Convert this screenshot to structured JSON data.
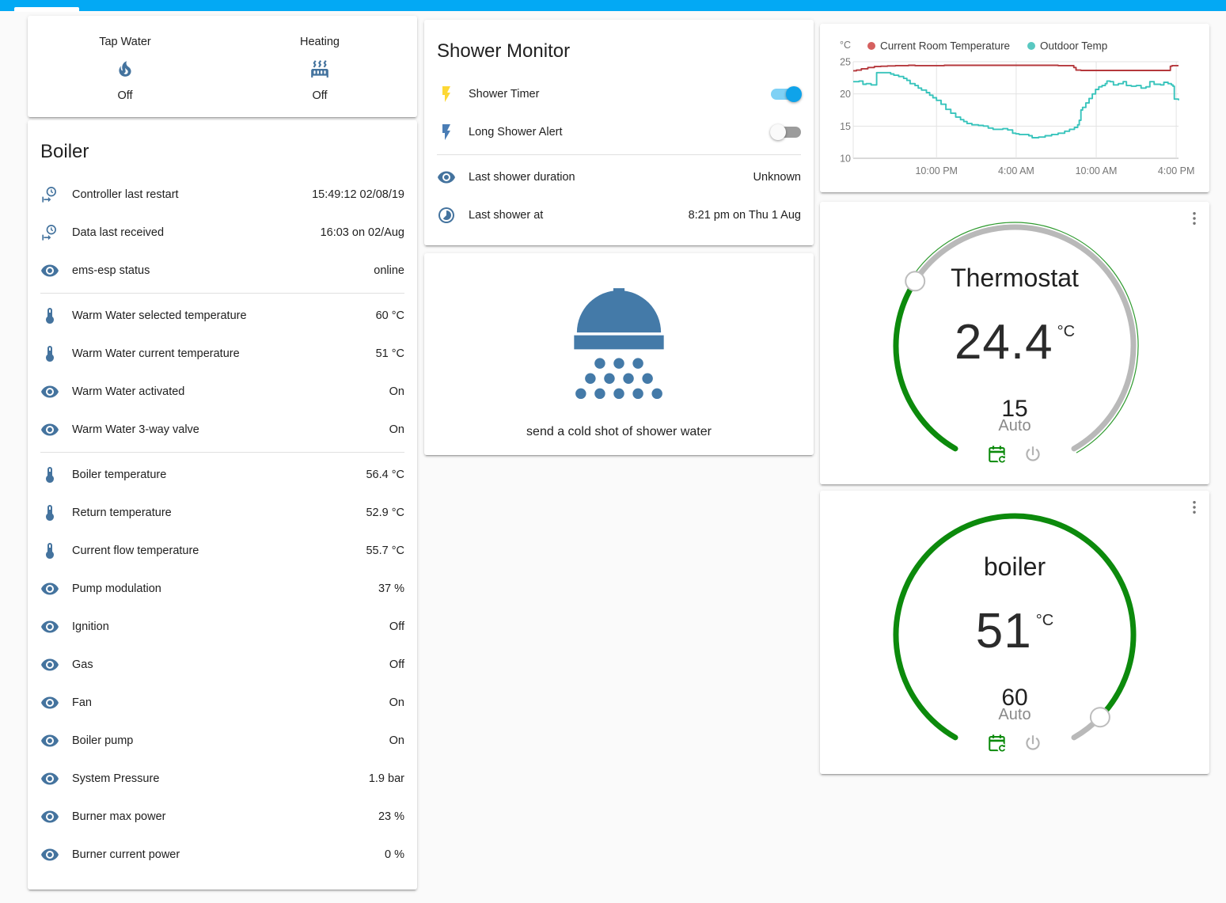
{
  "topbar": {
    "color": "#03a9f4"
  },
  "colors": {
    "icon_blue": "#44739e",
    "accent": "#03a9f4",
    "dial_green": "#0c8a0c",
    "dial_gray": "#b9b9b9",
    "yellow_bolt": "#fdd835",
    "blue_bolt": "#4a7db5",
    "shower_icon_blue": "#447aa8",
    "power_gray": "#b3b3b3",
    "menu_gray": "#757575"
  },
  "status_card": {
    "items": [
      {
        "label": "Tap Water",
        "icon": "fire-icon",
        "state": "Off"
      },
      {
        "label": "Heating",
        "icon": "radiator-icon",
        "state": "Off"
      }
    ]
  },
  "boiler_card": {
    "title": "Boiler",
    "groups": [
      [
        {
          "icon": "clock-start-icon",
          "label": "Controller last restart",
          "value": "15:49:12 02/08/19"
        },
        {
          "icon": "clock-start-icon",
          "label": "Data last received",
          "value": "16:03 on 02/Aug"
        },
        {
          "icon": "eye-icon",
          "label": "ems-esp status",
          "value": "online"
        }
      ],
      [
        {
          "icon": "thermometer-icon",
          "label": "Warm Water selected temperature",
          "value": "60 °C"
        },
        {
          "icon": "thermometer-icon",
          "label": "Warm Water current temperature",
          "value": "51 °C"
        },
        {
          "icon": "eye-icon",
          "label": "Warm Water activated",
          "value": "On"
        },
        {
          "icon": "eye-icon",
          "label": "Warm Water 3-way valve",
          "value": "On"
        }
      ],
      [
        {
          "icon": "thermometer-icon",
          "label": "Boiler temperature",
          "value": "56.4 °C"
        },
        {
          "icon": "thermometer-icon",
          "label": "Return temperature",
          "value": "52.9 °C"
        },
        {
          "icon": "thermometer-icon",
          "label": "Current flow temperature",
          "value": "55.7 °C"
        },
        {
          "icon": "eye-icon",
          "label": "Pump modulation",
          "value": "37 %"
        },
        {
          "icon": "eye-icon",
          "label": "Ignition",
          "value": "Off"
        },
        {
          "icon": "eye-icon",
          "label": "Gas",
          "value": "Off"
        },
        {
          "icon": "eye-icon",
          "label": "Fan",
          "value": "On"
        },
        {
          "icon": "eye-icon",
          "label": "Boiler pump",
          "value": "On"
        },
        {
          "icon": "eye-icon",
          "label": "System Pressure",
          "value": "1.9 bar"
        },
        {
          "icon": "eye-icon",
          "label": "Burner max power",
          "value": "23 %"
        },
        {
          "icon": "eye-icon",
          "label": "Burner current power",
          "value": "0 %"
        }
      ]
    ]
  },
  "shower_monitor": {
    "title": "Shower Monitor",
    "toggle_rows": [
      {
        "icon": "flash-icon",
        "icon_color": "#fdd835",
        "label": "Shower Timer",
        "on": true
      },
      {
        "icon": "flash-icon",
        "icon_color": "#4a7db5",
        "label": "Long Shower Alert",
        "on": false
      }
    ],
    "info_rows": [
      {
        "icon": "eye-icon",
        "label": "Last shower duration",
        "value": "Unknown"
      },
      {
        "icon": "timelapse-icon",
        "label": "Last shower at",
        "value": "8:21 pm on Thu 1 Aug"
      }
    ]
  },
  "shower_action_card": {
    "icon": "shower-head-icon",
    "label": "send a cold shot of shower water"
  },
  "chart_data": {
    "type": "line",
    "unit": "°C",
    "ylim": [
      10,
      25
    ],
    "yticks": [
      25,
      20,
      15,
      10
    ],
    "xticks": [
      {
        "label": "10:00 PM",
        "f": 0.256
      },
      {
        "label": "4:00 AM",
        "f": 0.501
      },
      {
        "label": "10:00 AM",
        "f": 0.747
      },
      {
        "label": "4:00 PM",
        "f": 0.993
      }
    ],
    "grid": true,
    "legend_position": "top",
    "series": [
      {
        "name": "Current Room Temperature",
        "color": "#b5383c",
        "dot_color": "#d5605f",
        "points": [
          [
            0.0,
            23.6
          ],
          [
            0.01,
            23.7
          ],
          [
            0.025,
            23.9
          ],
          [
            0.045,
            24.1
          ],
          [
            0.065,
            24.25
          ],
          [
            0.085,
            24.3
          ],
          [
            0.105,
            24.35
          ],
          [
            0.13,
            24.4
          ],
          [
            0.17,
            24.45
          ],
          [
            0.19,
            24.4
          ],
          [
            0.28,
            24.45
          ],
          [
            0.4,
            24.45
          ],
          [
            0.55,
            24.45
          ],
          [
            0.63,
            24.4
          ],
          [
            0.672,
            24.4
          ],
          [
            0.678,
            24.1
          ],
          [
            0.685,
            23.7
          ],
          [
            0.7,
            23.65
          ],
          [
            0.8,
            23.65
          ],
          [
            0.9,
            23.65
          ],
          [
            0.972,
            23.65
          ],
          [
            0.975,
            24.3
          ],
          [
            0.98,
            24.4
          ],
          [
            1.0,
            24.4
          ]
        ]
      },
      {
        "name": "Outdoor Temp",
        "color": "#38c4bc",
        "dot_color": "#59c8c1",
        "points": [
          [
            0.0,
            21.9
          ],
          [
            0.018,
            22.0
          ],
          [
            0.03,
            21.5
          ],
          [
            0.04,
            21.6
          ],
          [
            0.055,
            21.4
          ],
          [
            0.068,
            21.4
          ],
          [
            0.072,
            23.3
          ],
          [
            0.105,
            23.3
          ],
          [
            0.115,
            23.1
          ],
          [
            0.125,
            22.9
          ],
          [
            0.14,
            22.7
          ],
          [
            0.155,
            22.4
          ],
          [
            0.165,
            22.1
          ],
          [
            0.175,
            21.6
          ],
          [
            0.19,
            21.3
          ],
          [
            0.2,
            20.9
          ],
          [
            0.21,
            20.6
          ],
          [
            0.225,
            20.2
          ],
          [
            0.235,
            19.8
          ],
          [
            0.245,
            19.4
          ],
          [
            0.256,
            19.0
          ],
          [
            0.27,
            18.4
          ],
          [
            0.285,
            17.6
          ],
          [
            0.3,
            17.0
          ],
          [
            0.315,
            16.4
          ],
          [
            0.33,
            16.0
          ],
          [
            0.34,
            15.7
          ],
          [
            0.35,
            15.4
          ],
          [
            0.365,
            15.2
          ],
          [
            0.385,
            15.1
          ],
          [
            0.4,
            15.0
          ],
          [
            0.415,
            14.7
          ],
          [
            0.43,
            14.5
          ],
          [
            0.45,
            14.5
          ],
          [
            0.46,
            14.6
          ],
          [
            0.475,
            14.4
          ],
          [
            0.49,
            13.9
          ],
          [
            0.5,
            13.8
          ],
          [
            0.51,
            13.7
          ],
          [
            0.53,
            13.7
          ],
          [
            0.54,
            13.5
          ],
          [
            0.55,
            13.2
          ],
          [
            0.57,
            13.3
          ],
          [
            0.59,
            13.5
          ],
          [
            0.61,
            13.7
          ],
          [
            0.63,
            13.9
          ],
          [
            0.65,
            14.2
          ],
          [
            0.665,
            14.5
          ],
          [
            0.68,
            14.8
          ],
          [
            0.69,
            15.2
          ],
          [
            0.695,
            15.9
          ],
          [
            0.7,
            17.5
          ],
          [
            0.705,
            17.9
          ],
          [
            0.715,
            18.6
          ],
          [
            0.725,
            19.3
          ],
          [
            0.735,
            20.0
          ],
          [
            0.745,
            20.7
          ],
          [
            0.755,
            21.1
          ],
          [
            0.765,
            21.3
          ],
          [
            0.775,
            21.6
          ],
          [
            0.78,
            22.0
          ],
          [
            0.79,
            21.9
          ],
          [
            0.8,
            21.4
          ],
          [
            0.815,
            21.6
          ],
          [
            0.83,
            21.9
          ],
          [
            0.84,
            21.3
          ],
          [
            0.855,
            21.2
          ],
          [
            0.87,
            21.3
          ],
          [
            0.885,
            20.9
          ],
          [
            0.9,
            21.1
          ],
          [
            0.912,
            21.9
          ],
          [
            0.925,
            21.5
          ],
          [
            0.945,
            21.4
          ],
          [
            0.955,
            21.8
          ],
          [
            0.968,
            21.6
          ],
          [
            0.978,
            21.4
          ],
          [
            0.983,
            21.2
          ],
          [
            0.987,
            19.2
          ],
          [
            1.0,
            19.0
          ]
        ]
      }
    ]
  },
  "thermostat_card": {
    "title": "Thermostat",
    "current": "24.4",
    "unit": "°C",
    "target": "15",
    "mode": "Auto"
  },
  "boiler_dial_card": {
    "title": "boiler",
    "current": "51",
    "unit": "°C",
    "target": "60",
    "mode": "Auto"
  }
}
